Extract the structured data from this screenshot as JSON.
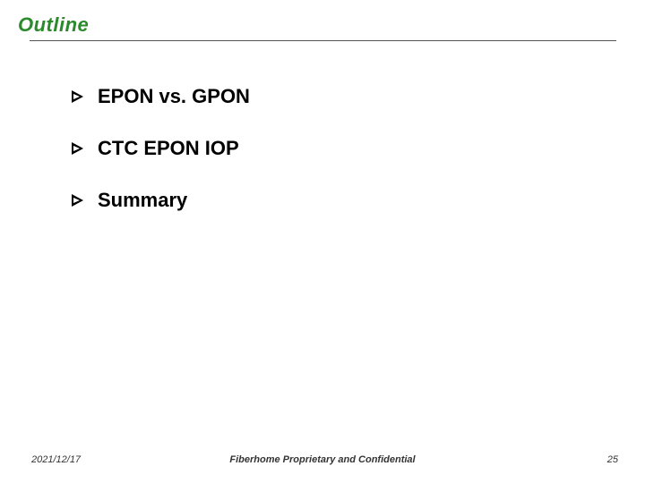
{
  "title": {
    "text": "Outline",
    "color": "#2b8a2b",
    "fontsize": 22
  },
  "underline": {
    "color": "#555555"
  },
  "items": [
    {
      "label": "EPON vs. GPON"
    },
    {
      "label": "CTC EPON IOP"
    },
    {
      "label": "Summary"
    }
  ],
  "footer": {
    "date": "2021/12/17",
    "center": "Fiberhome Proprietary and Confidential",
    "page": "25"
  },
  "colors": {
    "background": "#ffffff",
    "text": "#000000",
    "bullet": "#000000"
  }
}
